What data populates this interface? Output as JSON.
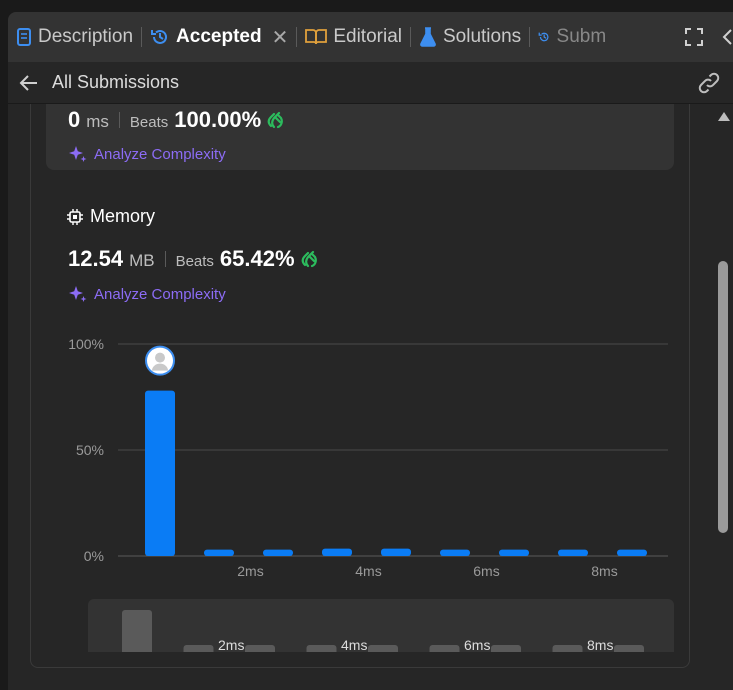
{
  "tabs": [
    {
      "label": "Description",
      "icon": "description-icon"
    },
    {
      "label": "Accepted",
      "icon": "history-icon"
    },
    {
      "label": "Editorial",
      "icon": "book-icon"
    },
    {
      "label": "Solutions",
      "icon": "flask-icon"
    },
    {
      "label": "Subm",
      "icon": "history-icon"
    }
  ],
  "header": {
    "title": "All Submissions"
  },
  "runtime": {
    "value": "0",
    "unit": "ms",
    "beats_label": "Beats",
    "beats_value": "100.00%",
    "analyze": "Analyze Complexity"
  },
  "memory": {
    "title": "Memory",
    "value": "12.54",
    "unit": "MB",
    "beats_label": "Beats",
    "beats_value": "65.42%",
    "analyze": "Analyze Complexity"
  },
  "colors": {
    "accent_blue": "#0a7cf5",
    "analyze_purple": "#8c6cf5",
    "clap_green": "#2cbb5d",
    "gray_bar": "#5a5a5a"
  },
  "chart_data": {
    "type": "bar",
    "x_ticks": [
      "2ms",
      "4ms",
      "6ms",
      "8ms"
    ],
    "y_ticks": [
      "100%",
      "50%",
      "0%"
    ],
    "ylim": [
      0,
      100
    ],
    "values": [
      78,
      3,
      3,
      3.5,
      3.5,
      3,
      3,
      3,
      3
    ],
    "highlight_index": 0,
    "grid": true
  },
  "mini_chart": {
    "x_ticks": [
      "2ms",
      "4ms",
      "6ms",
      "8ms"
    ],
    "values": [
      78,
      3,
      3,
      3.5,
      3.5,
      3,
      3,
      3,
      3
    ]
  }
}
